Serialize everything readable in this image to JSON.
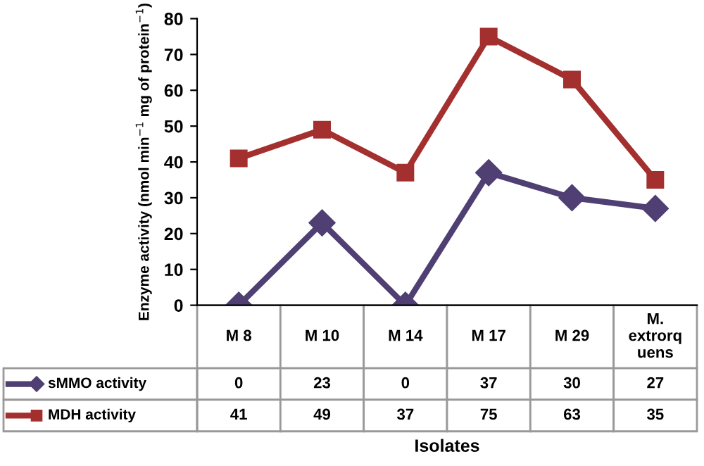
{
  "chart_data": {
    "type": "line",
    "categories": [
      "M 8",
      "M 10",
      "M 14",
      "M 17",
      "M 29",
      "M. extrorquens"
    ],
    "series": [
      {
        "name": "sMMO activity",
        "color": "#4f3f72",
        "marker": "diamond",
        "values": [
          0,
          23,
          0,
          37,
          30,
          27
        ]
      },
      {
        "name": "MDH activity",
        "color": "#a3302e",
        "marker": "square",
        "values": [
          41,
          49,
          37,
          75,
          63,
          35
        ]
      }
    ],
    "ylabel": "Enzyme activity (nmol min$^{−1}$ mg of protein$^{−1}$)",
    "xlabel": "Isolates",
    "ylim": [
      0,
      80
    ],
    "yticks": [
      0,
      10,
      20,
      30,
      40,
      50,
      60,
      70,
      80
    ],
    "data_labels": true,
    "grid": false,
    "legend": "bottom left",
    "line_style": "solid"
  }
}
